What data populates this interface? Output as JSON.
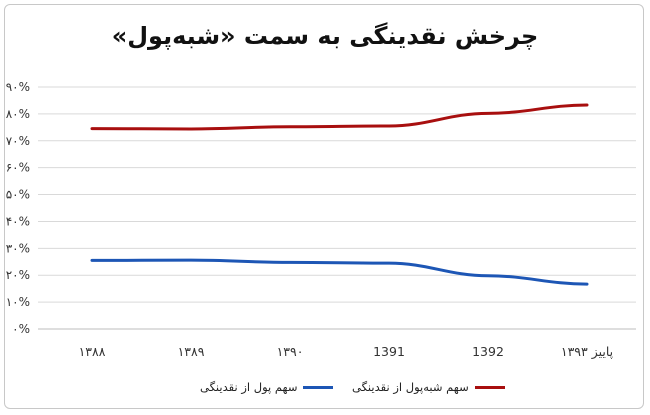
{
  "chart_data": {
    "type": "line",
    "title": "چرخش نقدینگی  به سمت «شبه‌پول»",
    "categories": [
      "۱۳۸۸",
      "۱۳۸۹",
      "۱۳۹۰",
      "1391",
      "1392",
      "پاییز ۱۳۹۳"
    ],
    "y_ticks": [
      "۰%",
      "۱۰%",
      "۲۰%",
      "۳۰%",
      "۴۰%",
      "۵۰%",
      "۶۰%",
      "۷۰%",
      "۸۰%",
      "۹۰%"
    ],
    "ylim": [
      0,
      90
    ],
    "grid": true,
    "legend_position": "bottom",
    "series": [
      {
        "name": "سهم شبه‌پول از نقدینگی",
        "color": "#a80f0f",
        "values": [
          74.5,
          74.4,
          75.2,
          75.5,
          80.2,
          83.3
        ]
      },
      {
        "name": "سهم پول از نقدینگی",
        "color": "#1d56b5",
        "values": [
          25.5,
          25.6,
          24.8,
          24.5,
          19.8,
          16.7
        ]
      }
    ]
  }
}
